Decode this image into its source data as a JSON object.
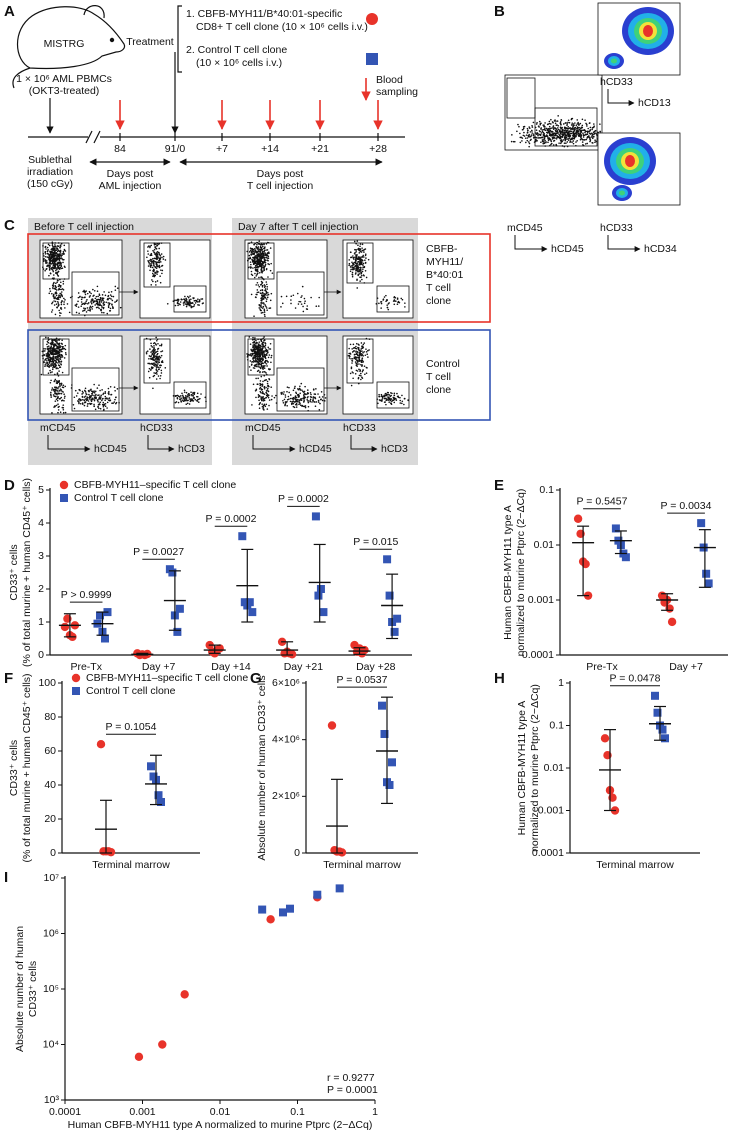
{
  "panel_a": {
    "label": "A",
    "mouse": "MISTRG",
    "cells": [
      "1 × 10⁶ AML PBMCs",
      "(OKT3-treated)"
    ],
    "treatment": "Treatment",
    "options": [
      "1. CBFB-MYH11/B*40:01-specific",
      "CD8+ T cell clone (10 × 10⁶ cells i.v.)",
      "2. Control T cell clone",
      "(10 × 10⁶ cells i.v.)"
    ],
    "sampling": [
      "Blood",
      "sampling"
    ],
    "timeline": [
      "84",
      "91/0",
      "+7",
      "+14",
      "+21",
      "+28"
    ],
    "irradiation": [
      "Sublethal",
      "irradiation",
      "(150 cGy)"
    ],
    "aml_period": [
      "Days post",
      "AML injection"
    ],
    "t_period": [
      "Days post",
      "T cell injection"
    ]
  },
  "panel_b": {
    "label": "B",
    "gates": [
      {
        "y": "mCD45",
        "x": "hCD45"
      },
      {
        "y": "hCD33",
        "x": "hCD13"
      },
      {
        "y": "hCD33",
        "x": "hCD34"
      }
    ]
  },
  "panel_c": {
    "label": "C",
    "groups": [
      "Before T cell injection",
      "Day 7 after T cell injection"
    ],
    "rows": [
      [
        "CBFB-",
        "MYH11/",
        "B*40:01",
        "T cell",
        "clone"
      ],
      [
        "Control",
        "T cell",
        "clone"
      ]
    ],
    "axes": [
      {
        "y": "mCD45",
        "x": "hCD45"
      },
      {
        "y": "hCD33",
        "x": "hCD3"
      }
    ]
  },
  "chart_data": [
    {
      "type": "dot_plot",
      "panel_label": "D",
      "ylabel": [
        "CD33⁺ cells",
        "(% of total murine + human CD45⁺ cells)"
      ],
      "categories": [
        "Pre-Tx",
        "Day +7",
        "Day +14",
        "Day +21",
        "Day +28"
      ],
      "ylim": [
        0,
        5
      ],
      "yticks": [
        0,
        1,
        2,
        3,
        4,
        5
      ],
      "legend": "top-left",
      "series": [
        {
          "name": "CBFB-MYH11–specific T cell clone",
          "color": "#e8332a",
          "marker": "circle",
          "values": [
            [
              0.85,
              1.1,
              0.6,
              0.55,
              0.9
            ],
            [
              0.05,
              0.0,
              0.02,
              0.0,
              0.03
            ],
            [
              0.3,
              0.1,
              0.05,
              0.15,
              0.2
            ],
            [
              0.4,
              0.05,
              0.1,
              0.05,
              0.02
            ],
            [
              0.3,
              0.1,
              0.2,
              0.05,
              0.15
            ]
          ],
          "means": [
            0.9,
            0.02,
            0.15,
            0.15,
            0.12
          ],
          "err_low": [
            0.55,
            0,
            0.05,
            0,
            0.02
          ],
          "err_high": [
            1.25,
            0.05,
            0.3,
            0.4,
            0.22
          ]
        },
        {
          "name": "Control T cell clone",
          "color": "#3355b4",
          "marker": "square",
          "values": [
            [
              0.95,
              1.2,
              0.7,
              0.5,
              1.3
            ],
            [
              2.6,
              2.5,
              1.2,
              0.7,
              1.4
            ],
            [
              3.6,
              1.6,
              1.5,
              1.6,
              1.3
            ],
            [
              4.2,
              1.8,
              2.0,
              1.3
            ],
            [
              2.9,
              1.8,
              1.0,
              0.7,
              1.1
            ]
          ],
          "means": [
            0.95,
            1.65,
            2.1,
            2.2,
            1.5
          ],
          "err_low": [
            0.6,
            0.75,
            1.0,
            1.0,
            0.5
          ],
          "err_high": [
            1.3,
            2.55,
            3.2,
            3.35,
            2.45
          ]
        }
      ],
      "annotations": [
        {
          "text": "P > 0.9999",
          "category": 0
        },
        {
          "text": "P = 0.0027",
          "category": 1
        },
        {
          "text": "P = 0.0002",
          "category": 2
        },
        {
          "text": "P = 0.0002",
          "category": 3
        },
        {
          "text": "P = 0.015",
          "category": 4
        }
      ]
    },
    {
      "type": "dot_plot",
      "panel_label": "E",
      "ylabel": [
        "Human CBFB-MYH11 type A",
        "normalized to murine Ptprc (2−ΔCq)"
      ],
      "categories": [
        "Pre-Tx",
        "Day +7"
      ],
      "log_y": true,
      "ylim": [
        0.0001,
        0.1
      ],
      "yticks": [
        0.0001,
        0.001,
        0.01,
        0.1
      ],
      "series": [
        {
          "color": "#e8332a",
          "marker": "circle",
          "values": [
            [
              0.03,
              0.016,
              0.005,
              0.0045,
              0.0012
            ],
            [
              0.0012,
              0.0009,
              0.001,
              0.0007,
              0.0004
            ]
          ],
          "means": [
            0.011,
            0.001
          ],
          "err_low": [
            0.0012,
            0.00065
          ],
          "err_high": [
            0.022,
            0.0013
          ]
        },
        {
          "color": "#3355b4",
          "marker": "square",
          "values": [
            [
              0.02,
              0.012,
              0.01,
              0.007,
              0.006
            ],
            [
              0.025,
              0.009,
              0.003,
              0.002
            ]
          ],
          "means": [
            0.012,
            0.009
          ],
          "err_low": [
            0.007,
            0.0017
          ],
          "err_high": [
            0.018,
            0.019
          ]
        }
      ],
      "annotations": [
        {
          "text": "P = 0.5457",
          "category": 0
        },
        {
          "text": "P = 0.0034",
          "category": 1
        }
      ]
    },
    {
      "type": "dot_plot",
      "panel_label": "F",
      "ylabel": [
        "CD33⁺ cells",
        "(% of total murine + human CD45⁺ cells)"
      ],
      "categories": [
        "Terminal marrow"
      ],
      "ylim": [
        0,
        100
      ],
      "yticks": [
        0,
        20,
        40,
        60,
        80,
        100
      ],
      "legend": "top-left",
      "series": [
        {
          "name": "CBFB-MYH11–specific T cell clone",
          "color": "#e8332a",
          "marker": "circle",
          "values": [
            [
              64,
              1,
              1,
              1,
              0.5
            ]
          ],
          "means": [
            14
          ],
          "err_low": [
            0
          ],
          "err_high": [
            31
          ]
        },
        {
          "name": "Control T cell clone",
          "color": "#3355b4",
          "marker": "square",
          "values": [
            [
              51,
              45,
              43,
              34,
              30
            ]
          ],
          "means": [
            40.6
          ],
          "err_low": [
            28.5
          ],
          "err_high": [
            57.5
          ]
        }
      ],
      "annotations": [
        {
          "text": "P = 0.1054",
          "category": 0
        }
      ]
    },
    {
      "type": "dot_plot",
      "panel_label": "G",
      "ylabel": [
        "Absolute number of human CD33⁺ cells"
      ],
      "categories": [
        "Terminal marrow"
      ],
      "ylim": [
        0,
        6000000
      ],
      "yticks": [
        0,
        {
          "value": 2000000,
          "label": "2×10⁶"
        },
        {
          "value": 4000000,
          "label": "4×10⁶"
        },
        {
          "value": 6000000,
          "label": "6×10⁶"
        }
      ],
      "series": [
        {
          "color": "#e8332a",
          "marker": "circle",
          "values": [
            [
              4500000,
              100000,
              50000,
              50000,
              20000
            ]
          ],
          "means": [
            950000
          ],
          "err_low": [
            0
          ],
          "err_high": [
            2600000
          ]
        },
        {
          "color": "#3355b4",
          "marker": "square",
          "values": [
            [
              5200000,
              4200000,
              2500000,
              2400000,
              3200000
            ]
          ],
          "means": [
            3600000
          ],
          "err_low": [
            1750000
          ],
          "err_high": [
            5500000
          ]
        }
      ],
      "annotations": [
        {
          "text": "P = 0.0537",
          "category": 0
        }
      ]
    },
    {
      "type": "dot_plot",
      "panel_label": "H",
      "ylabel": [
        "Human CBFB-MYH11 type A",
        "normalized to murine Ptprc (2−ΔCq)"
      ],
      "categories": [
        "Terminal marrow"
      ],
      "log_y": true,
      "ylim": [
        0.0001,
        1
      ],
      "yticks": [
        0.0001,
        0.001,
        0.01,
        0.1,
        1
      ],
      "series": [
        {
          "color": "#e8332a",
          "marker": "circle",
          "values": [
            [
              0.05,
              0.02,
              0.003,
              0.002,
              0.001
            ]
          ],
          "means": [
            0.009
          ],
          "err_low": [
            0.001
          ],
          "err_high": [
            0.08
          ]
        },
        {
          "color": "#3355b4",
          "marker": "square",
          "values": [
            [
              0.5,
              0.2,
              0.1,
              0.08,
              0.05
            ]
          ],
          "means": [
            0.11
          ],
          "err_low": [
            0.045
          ],
          "err_high": [
            0.28
          ]
        }
      ],
      "annotations": [
        {
          "text": "P = 0.0478",
          "category": 0
        }
      ]
    },
    {
      "type": "scatter",
      "panel_label": "I",
      "ylabel": [
        "Absolute number of human",
        "CD33⁺ cells"
      ],
      "xlabel": "Human CBFB-MYH11 type A normalized to murine Ptprc (2−ΔCq)",
      "log_x": true,
      "log_y": true,
      "xlim": [
        0.0001,
        1
      ],
      "xticks": [
        0.0001,
        0.001,
        0.01,
        0.1,
        1
      ],
      "ylim": [
        1000,
        10000000
      ],
      "yticks": [
        {
          "value": 1000,
          "label": "10³"
        },
        {
          "value": 10000,
          "label": "10⁴"
        },
        {
          "value": 100000,
          "label": "10⁵"
        },
        {
          "value": 1000000,
          "label": "10⁶"
        },
        {
          "value": 10000000,
          "label": "10⁷"
        }
      ],
      "series": [
        {
          "color": "#e8332a",
          "marker": "circle",
          "x": [
            0.0009,
            0.0018,
            0.0035,
            0.045,
            0.18
          ],
          "values": [
            6000,
            10000,
            80000,
            1800000,
            4500000
          ]
        },
        {
          "color": "#3355b4",
          "marker": "square",
          "x": [
            0.035,
            0.065,
            0.08,
            0.18,
            0.35
          ],
          "values": [
            2700000,
            2400000,
            2800000,
            5000000,
            6500000
          ]
        }
      ],
      "annotations": [
        {
          "text": "r = 0.9277"
        },
        {
          "text": "P = 0.0001"
        }
      ]
    }
  ]
}
